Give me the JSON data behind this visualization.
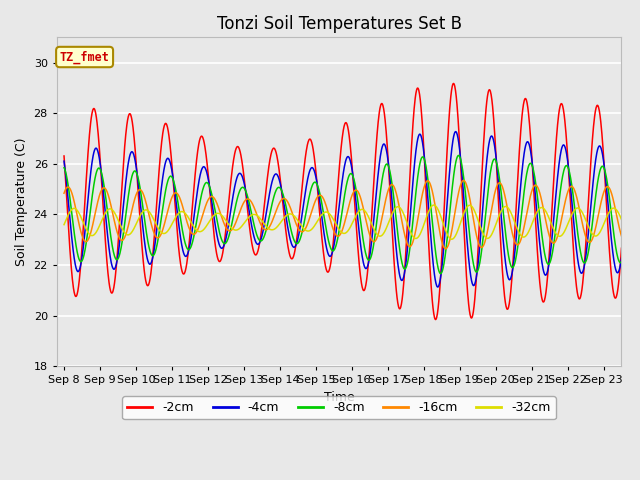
{
  "title": "Tonzi Soil Temperatures Set B",
  "xlabel": "Time",
  "ylabel": "Soil Temperature (C)",
  "ylim": [
    18,
    31
  ],
  "x_tick_labels": [
    "Sep 8",
    "Sep 9",
    "Sep 10",
    "Sep 11",
    "Sep 12",
    "Sep 13",
    "Sep 14",
    "Sep 15",
    "Sep 16",
    "Sep 17",
    "Sep 18",
    "Sep 19",
    "Sep 20",
    "Sep 21",
    "Sep 22",
    "Sep 23"
  ],
  "series": [
    {
      "label": "-2cm",
      "color": "#ff0000",
      "base_amp": 3.8,
      "mean": 24.5,
      "phase": 0.0,
      "phase_lag": 0.0
    },
    {
      "label": "-4cm",
      "color": "#0000dd",
      "base_amp": 2.5,
      "mean": 24.2,
      "phase": 0.0,
      "phase_lag": 0.06
    },
    {
      "label": "-8cm",
      "color": "#00cc00",
      "base_amp": 1.9,
      "mean": 24.0,
      "phase": 0.0,
      "phase_lag": 0.14
    },
    {
      "label": "-16cm",
      "color": "#ff8800",
      "base_amp": 1.1,
      "mean": 24.0,
      "phase": 0.0,
      "phase_lag": 0.28
    },
    {
      "label": "-32cm",
      "color": "#dddd00",
      "base_amp": 0.55,
      "mean": 23.7,
      "phase": 0.0,
      "phase_lag": 0.45
    }
  ],
  "annotation_text": "TZ_fmet",
  "annotation_color": "#cc0000",
  "annotation_bg": "#ffffcc",
  "annotation_edge": "#aa8800",
  "bg_color": "#e8e8e8",
  "plot_bg_color": "#e8e8e8",
  "grid_color": "#ffffff",
  "title_fontsize": 12,
  "label_fontsize": 9,
  "tick_fontsize": 8
}
